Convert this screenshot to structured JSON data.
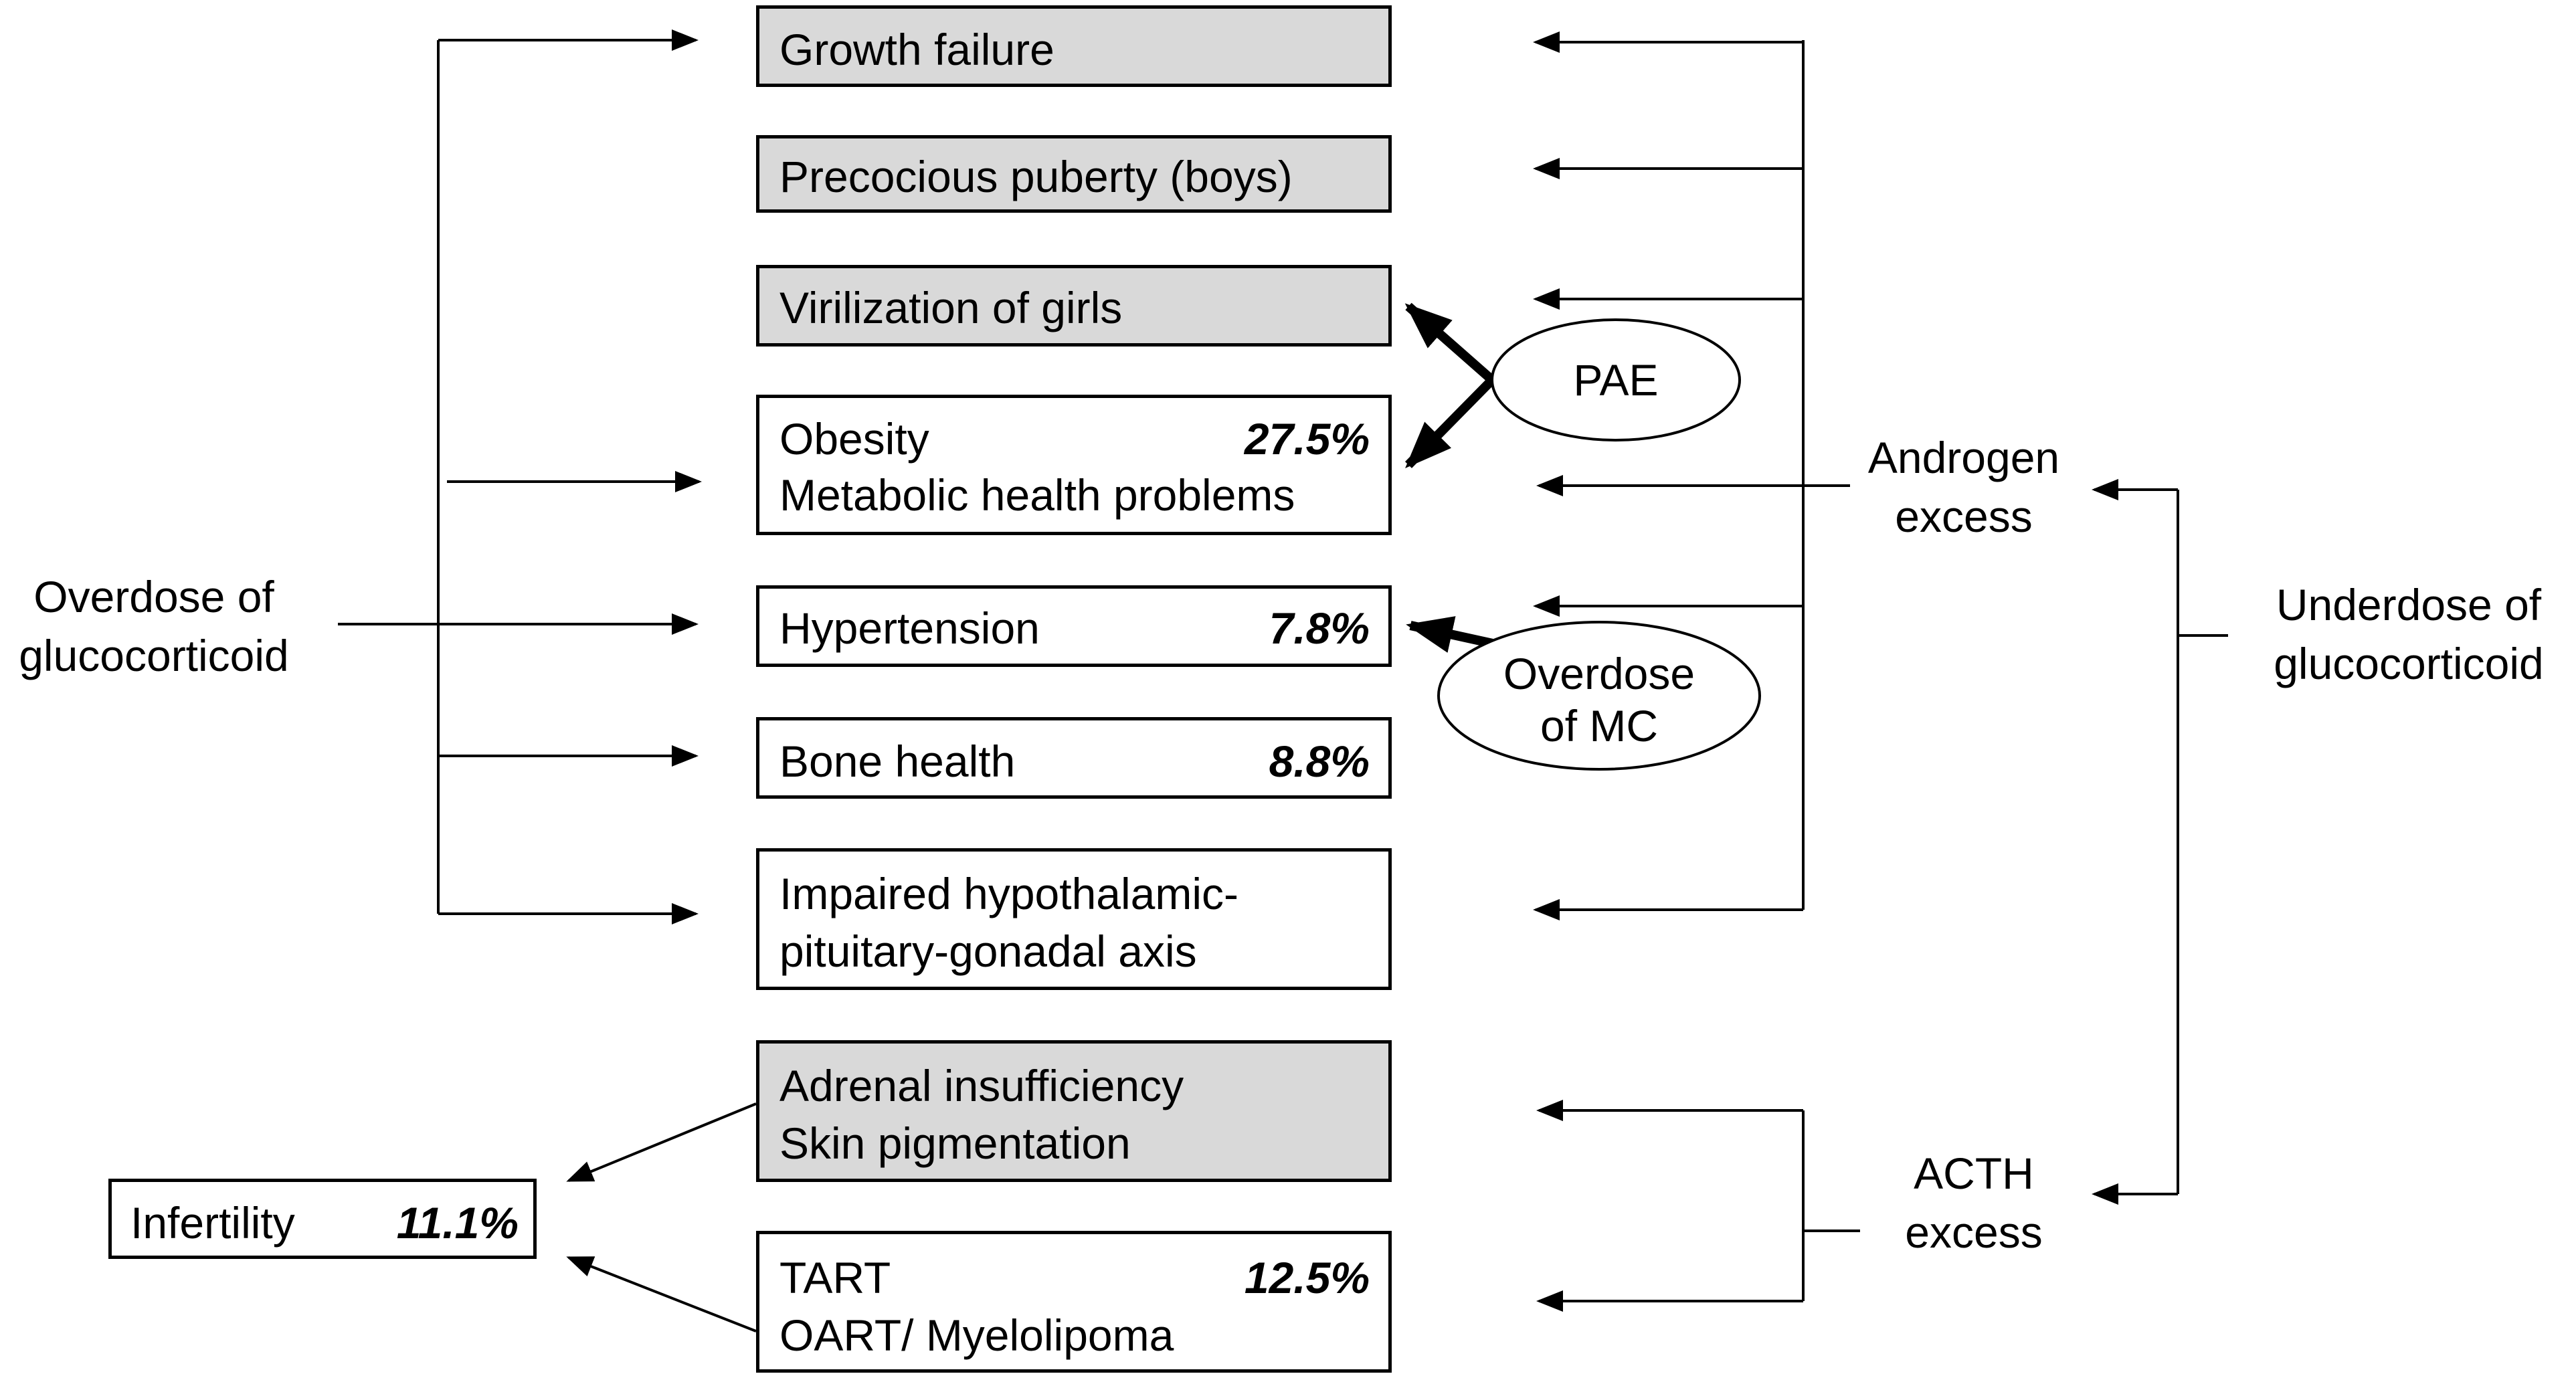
{
  "left": {
    "overdose_line1": "Overdose of",
    "overdose_line2": "glucocorticoid"
  },
  "right": {
    "underdose_line1": "Underdose of",
    "underdose_line2": "glucocorticoid",
    "androgen_line1": "Androgen",
    "androgen_line2": "excess",
    "acth_line1": "ACTH",
    "acth_line2": "excess"
  },
  "ellipses": {
    "pae": "PAE",
    "mc_line1": "Overdose",
    "mc_line2": "of MC"
  },
  "boxes": {
    "growth": "Growth failure",
    "puberty": "Precocious puberty (boys)",
    "virilization": "Virilization of girls",
    "obesity_line1": "Obesity",
    "obesity_pct": "27.5%",
    "obesity_line2": "Metabolic health problems",
    "hypertension": "Hypertension",
    "hypertension_pct": "7.8%",
    "bone": "Bone health",
    "bone_pct": "8.8%",
    "hpg_line1": "Impaired hypothalamic-",
    "hpg_line2": "pituitary-gonadal axis",
    "adrenal_line1": "Adrenal insufficiency",
    "adrenal_line2": "Skin pigmentation",
    "tart_line1": "TART",
    "tart_pct": "12.5%",
    "tart_line2": "OART/ Myelolipoma",
    "infertility": "Infertility",
    "infertility_pct": "11.1%"
  },
  "colors": {
    "box_fill_gray": "#d9d9d9",
    "box_fill_white": "#ffffff",
    "line": "#000000"
  }
}
